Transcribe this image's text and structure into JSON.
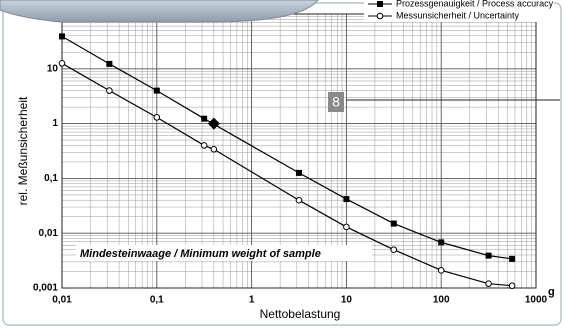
{
  "chart_data": {
    "type": "line",
    "xlabel": "Nettobelastung",
    "ylabel": "rel. Meßunsicherheit",
    "x_unit": "g",
    "log_x": true,
    "log_y": true,
    "grid": true,
    "xlim": [
      0.01,
      1000
    ],
    "ylim": [
      0.001,
      100
    ],
    "xticks": [
      {
        "value": 0.01,
        "label": "0,01"
      },
      {
        "value": 0.1,
        "label": "0,1"
      },
      1,
      10,
      100,
      1000
    ],
    "yticks": [
      {
        "value": 0.001,
        "label": "0,001"
      },
      {
        "value": 0.01,
        "label": "0,01"
      },
      {
        "value": 0.1,
        "label": "0,1"
      },
      1,
      10
    ],
    "series": [
      {
        "name": "Prozessgenauigkeit / Process accuracy",
        "color": "#000000",
        "marker": "square",
        "x": [
          0.01,
          0.0316,
          0.1,
          0.316,
          3.16,
          10,
          31.6,
          100,
          316,
          560
        ],
        "values": [
          39,
          12.3,
          4,
          1.23,
          0.126,
          0.042,
          0.015,
          0.0068,
          0.0039,
          0.0034
        ]
      },
      {
        "name": "Messunsicherheit / Uncertainty",
        "color": "#000000",
        "marker": "circle",
        "x": [
          0.01,
          0.0316,
          0.1,
          0.316,
          0.4,
          3.16,
          10,
          31.6,
          100,
          316,
          560
        ],
        "values": [
          12.6,
          4,
          1.3,
          0.4,
          0.34,
          0.04,
          0.013,
          0.005,
          0.0021,
          0.0012,
          0.0011
        ]
      }
    ],
    "highlight": {
      "x": 0.4,
      "y": 1
    },
    "annotations": {
      "callout": "8",
      "minimum_weight": "Mindesteinwaage / Minimum weight of sample"
    }
  }
}
